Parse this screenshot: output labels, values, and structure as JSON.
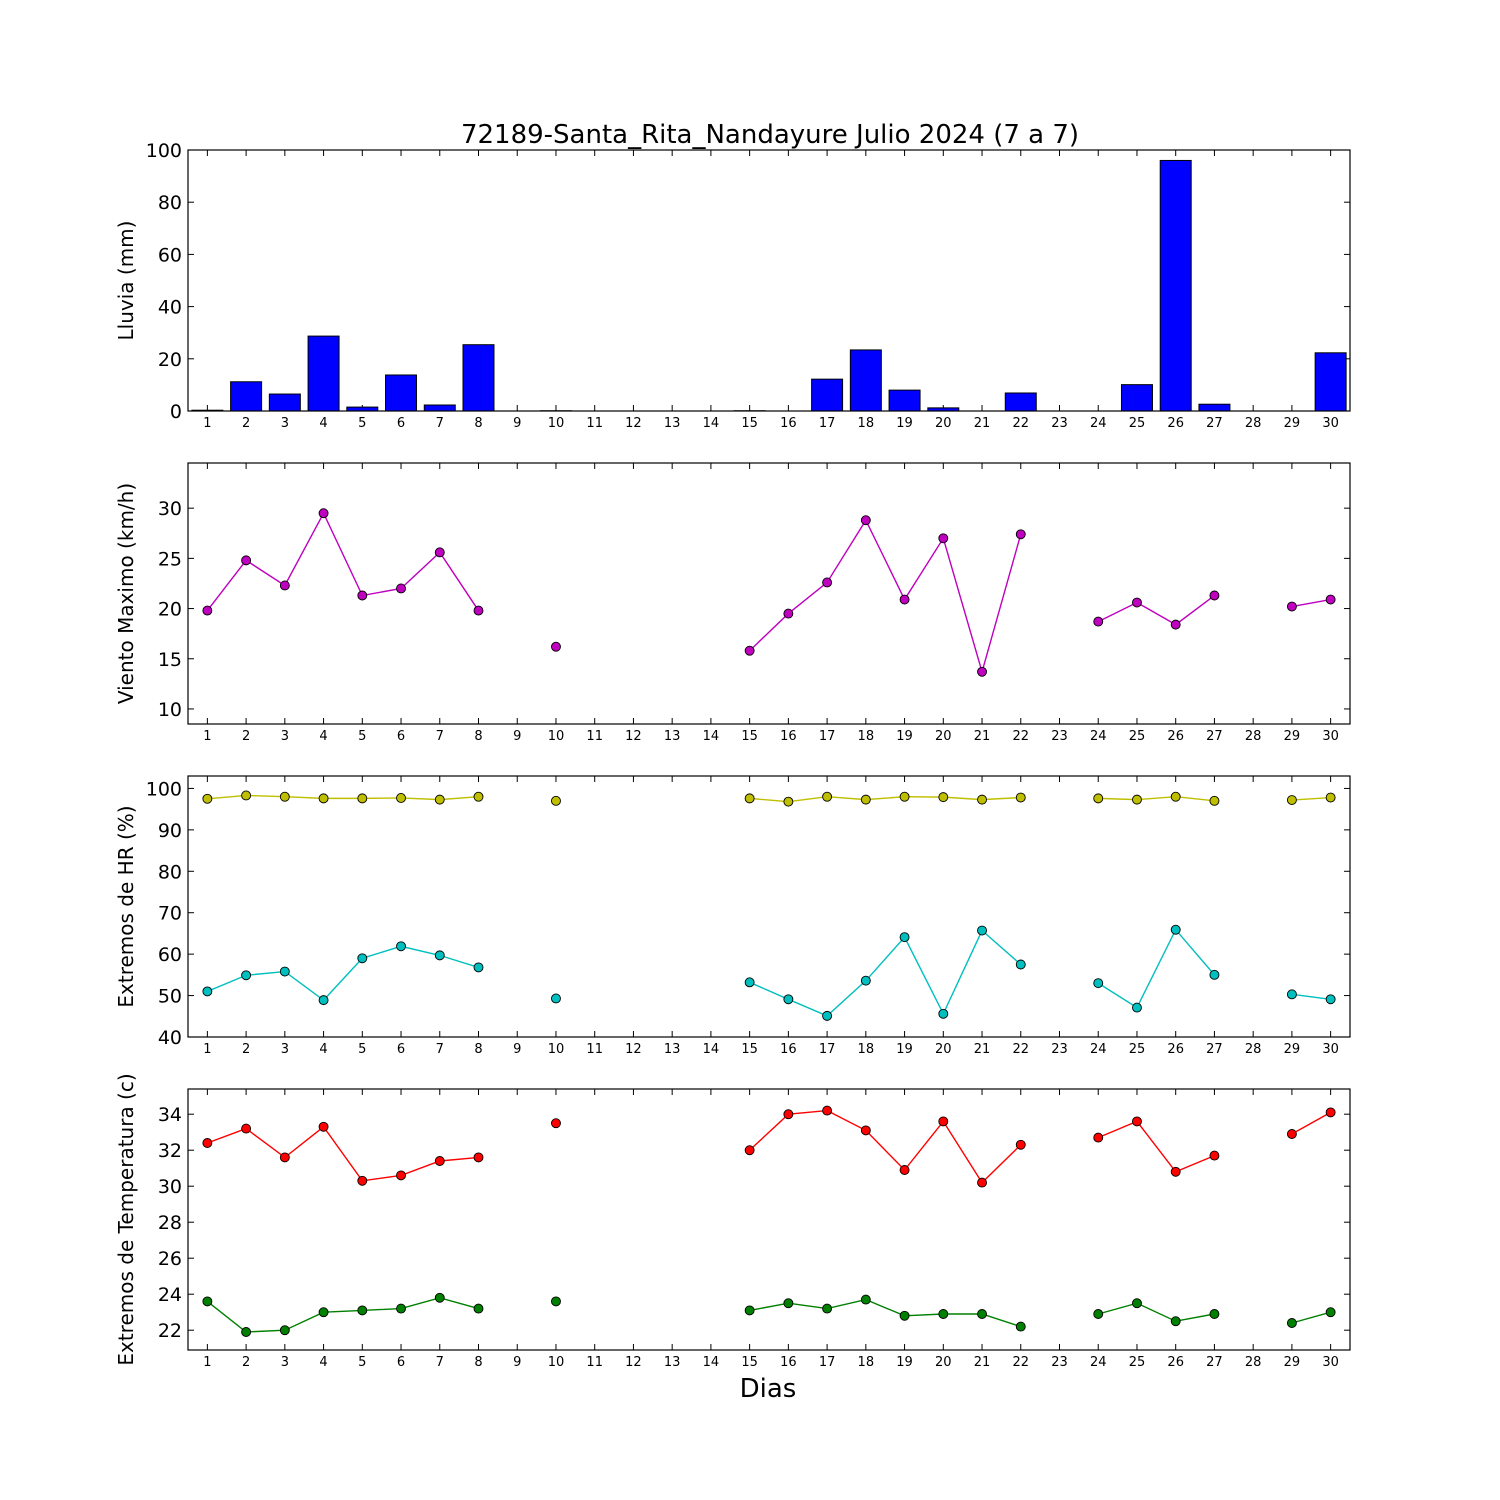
{
  "title": "72189-Santa_Rita_Nandayure Julio 2024  (7 a 7)",
  "xlabel": "Dias",
  "colors": {
    "rain": "#0000ff",
    "wind": "#bf00bf",
    "hr_max": "#bfbf00",
    "hr_min": "#00bfbf",
    "temp_max": "#ff0000",
    "temp_min": "#008000"
  },
  "chart_data": [
    {
      "type": "bar",
      "ylabel": "Lluvia (mm)",
      "ylim": [
        0,
        100
      ],
      "yticks": [
        0,
        20,
        40,
        60,
        80,
        100
      ],
      "x": [
        1,
        2,
        3,
        4,
        5,
        6,
        7,
        8,
        9,
        10,
        11,
        12,
        13,
        14,
        15,
        16,
        17,
        18,
        19,
        20,
        21,
        22,
        23,
        24,
        25,
        26,
        27,
        28,
        29,
        30
      ],
      "series": [
        {
          "color": "#0000ff",
          "values": [
            0.3,
            11.2,
            6.5,
            28.7,
            1.5,
            13.8,
            2.3,
            25.4,
            0,
            0.1,
            0,
            0,
            0,
            0,
            0.1,
            0,
            12.2,
            23.4,
            8.0,
            1.2,
            0,
            6.9,
            0,
            0,
            10.1,
            96.0,
            2.6,
            0,
            0,
            22.3
          ]
        }
      ]
    },
    {
      "type": "line",
      "ylabel": "Viento Maximo (km/h)",
      "ylim": [
        8.5,
        34.5
      ],
      "yticks": [
        10,
        15,
        20,
        25,
        30
      ],
      "x": [
        1,
        2,
        3,
        4,
        5,
        6,
        7,
        8,
        9,
        10,
        11,
        12,
        13,
        14,
        15,
        16,
        17,
        18,
        19,
        20,
        21,
        22,
        23,
        24,
        25,
        26,
        27,
        28,
        29,
        30
      ],
      "series": [
        {
          "color": "#bf00bf",
          "values": [
            19.8,
            24.8,
            22.3,
            29.5,
            21.3,
            22.0,
            25.6,
            19.8,
            null,
            16.2,
            null,
            null,
            null,
            null,
            15.8,
            19.5,
            22.6,
            28.8,
            20.9,
            27.0,
            13.7,
            27.4,
            null,
            18.7,
            20.6,
            18.4,
            21.3,
            null,
            20.2,
            20.9
          ]
        }
      ]
    },
    {
      "type": "line",
      "ylabel": "Extremos de HR (%)",
      "ylim": [
        40,
        103
      ],
      "yticks": [
        40,
        50,
        60,
        70,
        80,
        90,
        100
      ],
      "x": [
        1,
        2,
        3,
        4,
        5,
        6,
        7,
        8,
        9,
        10,
        11,
        12,
        13,
        14,
        15,
        16,
        17,
        18,
        19,
        20,
        21,
        22,
        23,
        24,
        25,
        26,
        27,
        28,
        29,
        30
      ],
      "series": [
        {
          "color": "#bfbf00",
          "values": [
            97.5,
            98.3,
            98.0,
            97.6,
            97.6,
            97.7,
            97.3,
            98.0,
            null,
            97.0,
            null,
            null,
            null,
            null,
            97.6,
            96.8,
            98.0,
            97.3,
            98.0,
            97.9,
            97.3,
            97.8,
            null,
            97.6,
            97.3,
            98.0,
            97.0,
            null,
            97.2,
            97.8
          ]
        },
        {
          "color": "#00bfbf",
          "values": [
            51.0,
            54.9,
            55.8,
            48.9,
            59.0,
            61.9,
            59.7,
            56.8,
            null,
            49.3,
            null,
            null,
            null,
            null,
            53.2,
            49.1,
            45.1,
            53.6,
            64.1,
            45.6,
            65.7,
            57.5,
            null,
            53.0,
            47.1,
            65.9,
            55.0,
            null,
            50.3,
            49.1
          ]
        }
      ]
    },
    {
      "type": "line",
      "ylabel": "Extremos de Temperatura (c)",
      "ylim": [
        20.9,
        35.4
      ],
      "yticks": [
        22,
        24,
        26,
        28,
        30,
        32,
        34
      ],
      "x": [
        1,
        2,
        3,
        4,
        5,
        6,
        7,
        8,
        9,
        10,
        11,
        12,
        13,
        14,
        15,
        16,
        17,
        18,
        19,
        20,
        21,
        22,
        23,
        24,
        25,
        26,
        27,
        28,
        29,
        30
      ],
      "series": [
        {
          "color": "#ff0000",
          "values": [
            32.4,
            33.2,
            31.6,
            33.3,
            30.3,
            30.6,
            31.4,
            31.6,
            null,
            33.5,
            null,
            null,
            null,
            null,
            32.0,
            34.0,
            34.2,
            33.1,
            30.9,
            33.6,
            30.2,
            32.3,
            null,
            32.7,
            33.6,
            30.8,
            31.7,
            null,
            32.9,
            34.1
          ]
        },
        {
          "color": "#008000",
          "values": [
            23.6,
            21.9,
            22.0,
            23.0,
            23.1,
            23.2,
            23.8,
            23.2,
            null,
            23.6,
            null,
            null,
            null,
            null,
            23.1,
            23.5,
            23.2,
            23.7,
            22.8,
            22.9,
            22.9,
            22.2,
            null,
            22.9,
            23.5,
            22.5,
            22.9,
            null,
            22.4,
            23.0
          ]
        }
      ]
    }
  ]
}
